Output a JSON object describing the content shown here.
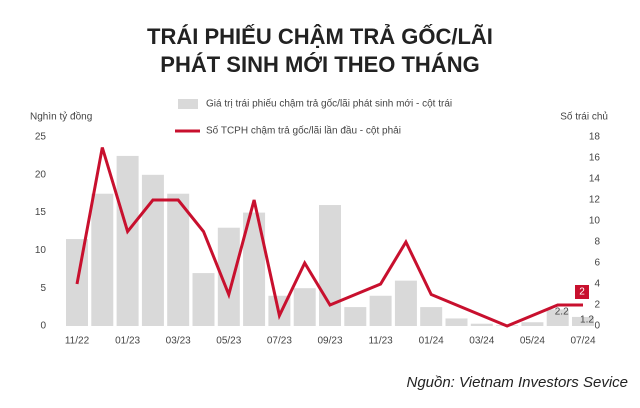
{
  "chart_data": {
    "type": "bar-line",
    "title": "TRÁI PHIẾU CHẬM TRẢ GỐC/LÃI",
    "subtitle": "PHÁT SINH MỚI THEO THÁNG",
    "y_label": "Nghìn tỷ đồng",
    "y2_label": "Số trái chủ",
    "source": "Nguồn: Vietnam Investors Sevice",
    "categories": [
      "11/22",
      null,
      "01/23",
      null,
      "03/23",
      null,
      "05/23",
      null,
      "07/23",
      null,
      "09/23",
      null,
      "11/23",
      null,
      "01/24",
      null,
      "03/24",
      null,
      "05/24",
      null,
      "07/24"
    ],
    "series": [
      {
        "name": "Giá trị trái phiếu chậm trả gốc/lãi phát sinh mới - cột trái",
        "color": "#d9d9d9",
        "kind": "bar",
        "values": [
          11.5,
          17.5,
          22.5,
          20,
          17.5,
          7,
          13,
          15,
          4,
          5,
          16,
          2.5,
          4,
          6,
          2.5,
          1,
          0.3,
          0.1,
          0.5,
          2.2,
          1.2
        ],
        "value_labels": [
          null,
          null,
          null,
          null,
          null,
          null,
          null,
          null,
          null,
          null,
          null,
          null,
          null,
          null,
          null,
          null,
          null,
          null,
          null,
          "2.2",
          "1.2"
        ]
      },
      {
        "name": "Số TCPH chậm trả gốc/lãi lần đầu - cột phải",
        "color": "#c8102e",
        "kind": "line",
        "axis": "y2",
        "values": [
          4,
          17,
          9,
          12,
          12,
          9,
          3,
          12,
          1,
          6,
          2,
          3,
          4,
          8,
          3,
          2,
          1,
          0,
          1,
          2,
          2
        ],
        "value_labels": [
          null,
          null,
          null,
          null,
          null,
          null,
          null,
          null,
          null,
          null,
          null,
          null,
          null,
          null,
          null,
          null,
          null,
          null,
          null,
          null,
          "2"
        ]
      }
    ],
    "ylim": [
      0,
      25
    ],
    "yticks": [
      0,
      5,
      10,
      15,
      20,
      25
    ],
    "y2lim": [
      0,
      18
    ],
    "y2ticks": [
      0,
      2,
      4,
      6,
      8,
      10,
      12,
      14,
      16,
      18
    ]
  }
}
